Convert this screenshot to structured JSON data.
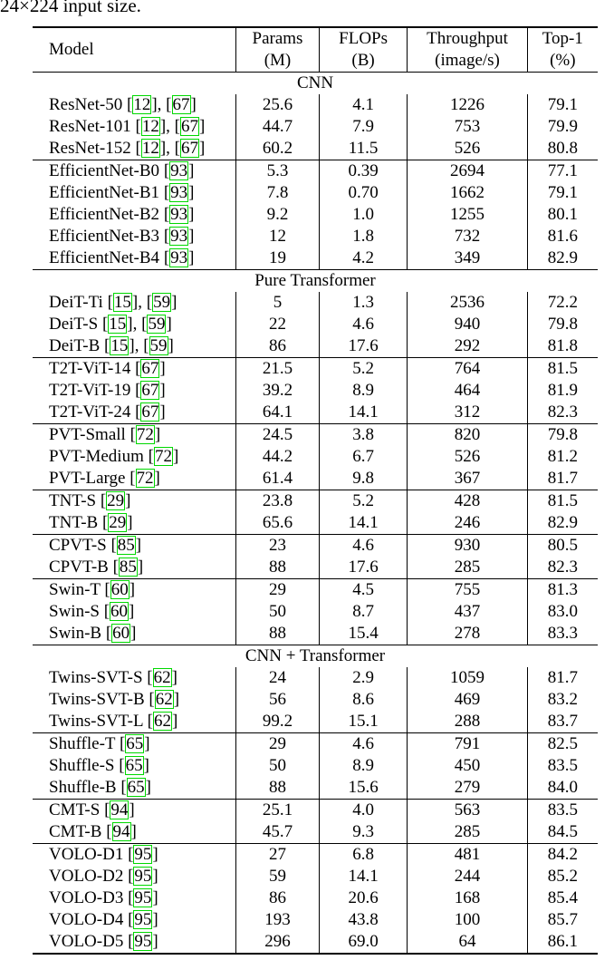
{
  "caption_tail": "24×224 input size.",
  "columns": [
    {
      "line1": "Model",
      "line2": ""
    },
    {
      "line1": "Params",
      "line2": "(M)"
    },
    {
      "line1": "FLOPs",
      "line2": "(B)"
    },
    {
      "line1": "Throughput",
      "line2": "(image/s)"
    },
    {
      "line1": "Top-1",
      "line2": "(%)"
    }
  ],
  "sections": [
    {
      "title": "CNN",
      "groups": [
        [
          {
            "name": "ResNet-50",
            "cites": [
              "12",
              "67"
            ],
            "params": "25.6",
            "flops": "4.1",
            "throughput": "1226",
            "top1": "79.1"
          },
          {
            "name": "ResNet-101",
            "cites": [
              "12",
              "67"
            ],
            "params": "44.7",
            "flops": "7.9",
            "throughput": "753",
            "top1": "79.9"
          },
          {
            "name": "ResNet-152",
            "cites": [
              "12",
              "67"
            ],
            "params": "60.2",
            "flops": "11.5",
            "throughput": "526",
            "top1": "80.8"
          }
        ],
        [
          {
            "name": "EfficientNet-B0",
            "cites": [
              "93"
            ],
            "params": "5.3",
            "flops": "0.39",
            "throughput": "2694",
            "top1": "77.1"
          },
          {
            "name": "EfficientNet-B1",
            "cites": [
              "93"
            ],
            "params": "7.8",
            "flops": "0.70",
            "throughput": "1662",
            "top1": "79.1"
          },
          {
            "name": "EfficientNet-B2",
            "cites": [
              "93"
            ],
            "params": "9.2",
            "flops": "1.0",
            "throughput": "1255",
            "top1": "80.1"
          },
          {
            "name": "EfficientNet-B3",
            "cites": [
              "93"
            ],
            "params": "12",
            "flops": "1.8",
            "throughput": "732",
            "top1": "81.6"
          },
          {
            "name": "EfficientNet-B4",
            "cites": [
              "93"
            ],
            "params": "19",
            "flops": "4.2",
            "throughput": "349",
            "top1": "82.9"
          }
        ]
      ]
    },
    {
      "title": "Pure Transformer",
      "groups": [
        [
          {
            "name": "DeiT-Ti",
            "cites": [
              "15",
              "59"
            ],
            "params": "5",
            "flops": "1.3",
            "throughput": "2536",
            "top1": "72.2"
          },
          {
            "name": "DeiT-S",
            "cites": [
              "15",
              "59"
            ],
            "params": "22",
            "flops": "4.6",
            "throughput": "940",
            "top1": "79.8"
          },
          {
            "name": "DeiT-B",
            "cites": [
              "15",
              "59"
            ],
            "params": "86",
            "flops": "17.6",
            "throughput": "292",
            "top1": "81.8"
          }
        ],
        [
          {
            "name": "T2T-ViT-14",
            "cites": [
              "67"
            ],
            "params": "21.5",
            "flops": "5.2",
            "throughput": "764",
            "top1": "81.5"
          },
          {
            "name": "T2T-ViT-19",
            "cites": [
              "67"
            ],
            "params": "39.2",
            "flops": "8.9",
            "throughput": "464",
            "top1": "81.9"
          },
          {
            "name": "T2T-ViT-24",
            "cites": [
              "67"
            ],
            "params": "64.1",
            "flops": "14.1",
            "throughput": "312",
            "top1": "82.3"
          }
        ],
        [
          {
            "name": "PVT-Small",
            "cites": [
              "72"
            ],
            "params": "24.5",
            "flops": "3.8",
            "throughput": "820",
            "top1": "79.8"
          },
          {
            "name": "PVT-Medium",
            "cites": [
              "72"
            ],
            "params": "44.2",
            "flops": "6.7",
            "throughput": "526",
            "top1": "81.2"
          },
          {
            "name": "PVT-Large",
            "cites": [
              "72"
            ],
            "params": "61.4",
            "flops": "9.8",
            "throughput": "367",
            "top1": "81.7"
          }
        ],
        [
          {
            "name": "TNT-S",
            "cites": [
              "29"
            ],
            "params": "23.8",
            "flops": "5.2",
            "throughput": "428",
            "top1": "81.5"
          },
          {
            "name": "TNT-B",
            "cites": [
              "29"
            ],
            "params": "65.6",
            "flops": "14.1",
            "throughput": "246",
            "top1": "82.9"
          }
        ],
        [
          {
            "name": "CPVT-S",
            "cites": [
              "85"
            ],
            "params": "23",
            "flops": "4.6",
            "throughput": "930",
            "top1": "80.5"
          },
          {
            "name": "CPVT-B",
            "cites": [
              "85"
            ],
            "params": "88",
            "flops": "17.6",
            "throughput": "285",
            "top1": "82.3"
          }
        ],
        [
          {
            "name": "Swin-T",
            "cites": [
              "60"
            ],
            "params": "29",
            "flops": "4.5",
            "throughput": "755",
            "top1": "81.3"
          },
          {
            "name": "Swin-S",
            "cites": [
              "60"
            ],
            "params": "50",
            "flops": "8.7",
            "throughput": "437",
            "top1": "83.0"
          },
          {
            "name": "Swin-B",
            "cites": [
              "60"
            ],
            "params": "88",
            "flops": "15.4",
            "throughput": "278",
            "top1": "83.3"
          }
        ]
      ]
    },
    {
      "title": "CNN + Transformer",
      "groups": [
        [
          {
            "name": "Twins-SVT-S",
            "cites": [
              "62"
            ],
            "params": "24",
            "flops": "2.9",
            "throughput": "1059",
            "top1": "81.7"
          },
          {
            "name": "Twins-SVT-B",
            "cites": [
              "62"
            ],
            "params": "56",
            "flops": "8.6",
            "throughput": "469",
            "top1": "83.2"
          },
          {
            "name": "Twins-SVT-L",
            "cites": [
              "62"
            ],
            "params": "99.2",
            "flops": "15.1",
            "throughput": "288",
            "top1": "83.7"
          }
        ],
        [
          {
            "name": "Shuffle-T",
            "cites": [
              "65"
            ],
            "params": "29",
            "flops": "4.6",
            "throughput": "791",
            "top1": "82.5"
          },
          {
            "name": "Shuffle-S",
            "cites": [
              "65"
            ],
            "params": "50",
            "flops": "8.9",
            "throughput": "450",
            "top1": "83.5"
          },
          {
            "name": "Shuffle-B",
            "cites": [
              "65"
            ],
            "params": "88",
            "flops": "15.6",
            "throughput": "279",
            "top1": "84.0"
          }
        ],
        [
          {
            "name": "CMT-S",
            "cites": [
              "94"
            ],
            "params": "25.1",
            "flops": "4.0",
            "throughput": "563",
            "top1": "83.5"
          },
          {
            "name": "CMT-B",
            "cites": [
              "94"
            ],
            "params": "45.7",
            "flops": "9.3",
            "throughput": "285",
            "top1": "84.5"
          }
        ],
        [
          {
            "name": "VOLO-D1",
            "cites": [
              "95"
            ],
            "params": "27",
            "flops": "6.8",
            "throughput": "481",
            "top1": "84.2"
          },
          {
            "name": "VOLO-D2",
            "cites": [
              "95"
            ],
            "params": "59",
            "flops": "14.1",
            "throughput": "244",
            "top1": "85.2"
          },
          {
            "name": "VOLO-D3",
            "cites": [
              "95"
            ],
            "params": "86",
            "flops": "20.6",
            "throughput": "168",
            "top1": "85.4"
          },
          {
            "name": "VOLO-D4",
            "cites": [
              "95"
            ],
            "params": "193",
            "flops": "43.8",
            "throughput": "100",
            "top1": "85.7"
          },
          {
            "name": "VOLO-D5",
            "cites": [
              "95"
            ],
            "params": "296",
            "flops": "69.0",
            "throughput": "64",
            "top1": "86.1"
          }
        ]
      ]
    }
  ],
  "colors": {
    "citation_box": "#00d800",
    "rule": "#000000"
  }
}
